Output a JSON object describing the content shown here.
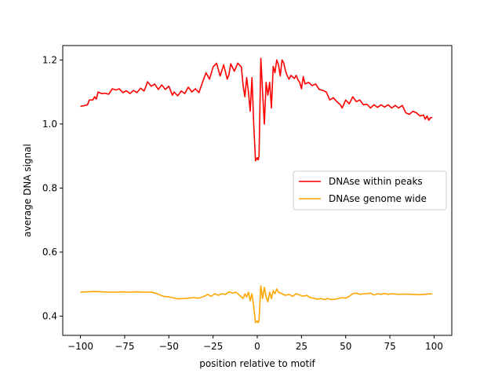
{
  "chart_data": {
    "type": "line",
    "title": "",
    "xlabel": "position relative to motif",
    "ylabel": "average DNA signal",
    "xlim": [
      -110,
      110
    ],
    "ylim": [
      0.34,
      1.245
    ],
    "xticks": [
      -100,
      -75,
      -50,
      -25,
      0,
      25,
      50,
      75,
      100
    ],
    "xtick_labels": [
      "−100",
      "−75",
      "−50",
      "−25",
      "0",
      "25",
      "50",
      "75",
      "100"
    ],
    "yticks": [
      0.4,
      0.6,
      0.8,
      1.0,
      1.2
    ],
    "ytick_labels": [
      "0.4",
      "0.6",
      "0.8",
      "1.0",
      "1.2"
    ],
    "grid": false,
    "legend_position": "center-right",
    "series": [
      {
        "name": "DNAse within peaks",
        "color": "#ff0000",
        "points": [
          [
            -100,
            1.055
          ],
          [
            -98,
            1.057
          ],
          [
            -96,
            1.06
          ],
          [
            -95,
            1.075
          ],
          [
            -93,
            1.075
          ],
          [
            -92,
            1.085
          ],
          [
            -91,
            1.078
          ],
          [
            -90,
            1.1
          ],
          [
            -88,
            1.095
          ],
          [
            -86,
            1.096
          ],
          [
            -84,
            1.093
          ],
          [
            -82,
            1.11
          ],
          [
            -80,
            1.106
          ],
          [
            -78,
            1.11
          ],
          [
            -76,
            1.098
          ],
          [
            -74,
            1.104
          ],
          [
            -72,
            1.095
          ],
          [
            -70,
            1.105
          ],
          [
            -68,
            1.098
          ],
          [
            -66,
            1.112
          ],
          [
            -64,
            1.103
          ],
          [
            -62,
            1.132
          ],
          [
            -60,
            1.118
          ],
          [
            -58,
            1.125
          ],
          [
            -56,
            1.108
          ],
          [
            -54,
            1.122
          ],
          [
            -52,
            1.108
          ],
          [
            -50,
            1.118
          ],
          [
            -48,
            1.09
          ],
          [
            -47,
            1.1
          ],
          [
            -45,
            1.088
          ],
          [
            -43,
            1.103
          ],
          [
            -41,
            1.095
          ],
          [
            -39,
            1.115
          ],
          [
            -37,
            1.1
          ],
          [
            -35,
            1.11
          ],
          [
            -33,
            1.098
          ],
          [
            -31,
            1.13
          ],
          [
            -29,
            1.16
          ],
          [
            -27,
            1.14
          ],
          [
            -25,
            1.178
          ],
          [
            -23,
            1.19
          ],
          [
            -21,
            1.15
          ],
          [
            -19,
            1.185
          ],
          [
            -17,
            1.14
          ],
          [
            -16,
            1.155
          ],
          [
            -15,
            1.188
          ],
          [
            -13,
            1.165
          ],
          [
            -11,
            1.19
          ],
          [
            -9,
            1.178
          ],
          [
            -8,
            1.12
          ],
          [
            -7,
            1.085
          ],
          [
            -6,
            1.145
          ],
          [
            -5,
            1.1
          ],
          [
            -4,
            1.04
          ],
          [
            -3,
            1.145
          ],
          [
            -2,
            1.0
          ],
          [
            -1,
            0.885
          ],
          [
            0,
            0.895
          ],
          [
            0.5,
            0.888
          ],
          [
            1,
            0.9
          ],
          [
            2,
            1.205
          ],
          [
            3,
            1.1
          ],
          [
            4,
            1.0
          ],
          [
            5,
            1.13
          ],
          [
            6,
            1.09
          ],
          [
            7,
            1.13
          ],
          [
            8,
            1.05
          ],
          [
            9,
            1.18
          ],
          [
            10,
            1.16
          ],
          [
            11,
            1.2
          ],
          [
            12,
            1.185
          ],
          [
            13,
            1.15
          ],
          [
            14,
            1.2
          ],
          [
            15,
            1.19
          ],
          [
            16,
            1.165
          ],
          [
            17,
            1.15
          ],
          [
            18,
            1.14
          ],
          [
            19,
            1.152
          ],
          [
            21,
            1.142
          ],
          [
            22,
            1.152
          ],
          [
            23,
            1.138
          ],
          [
            24,
            1.13
          ],
          [
            25,
            1.11
          ],
          [
            26,
            1.148
          ],
          [
            27,
            1.125
          ],
          [
            29,
            1.13
          ],
          [
            31,
            1.12
          ],
          [
            33,
            1.125
          ],
          [
            35,
            1.108
          ],
          [
            37,
            1.105
          ],
          [
            39,
            1.1
          ],
          [
            41,
            1.075
          ],
          [
            43,
            1.082
          ],
          [
            45,
            1.07
          ],
          [
            47,
            1.06
          ],
          [
            48,
            1.05
          ],
          [
            50,
            1.075
          ],
          [
            52,
            1.063
          ],
          [
            54,
            1.085
          ],
          [
            56,
            1.07
          ],
          [
            58,
            1.075
          ],
          [
            60,
            1.06
          ],
          [
            62,
            1.062
          ],
          [
            64,
            1.05
          ],
          [
            66,
            1.06
          ],
          [
            68,
            1.052
          ],
          [
            70,
            1.06
          ],
          [
            72,
            1.053
          ],
          [
            74,
            1.06
          ],
          [
            76,
            1.05
          ],
          [
            78,
            1.058
          ],
          [
            80,
            1.05
          ],
          [
            82,
            1.058
          ],
          [
            84,
            1.035
          ],
          [
            86,
            1.03
          ],
          [
            88,
            1.04
          ],
          [
            90,
            1.035
          ],
          [
            92,
            1.025
          ],
          [
            94,
            1.028
          ],
          [
            95,
            1.015
          ],
          [
            96,
            1.025
          ],
          [
            97,
            1.012
          ],
          [
            98,
            1.02
          ],
          [
            99,
            1.02
          ]
        ]
      },
      {
        "name": "DNAse genome wide",
        "color": "#ffa500",
        "points": [
          [
            -100,
            0.475
          ],
          [
            -96,
            0.476
          ],
          [
            -92,
            0.477
          ],
          [
            -88,
            0.476
          ],
          [
            -84,
            0.475
          ],
          [
            -80,
            0.475
          ],
          [
            -76,
            0.476
          ],
          [
            -72,
            0.475
          ],
          [
            -68,
            0.476
          ],
          [
            -64,
            0.475
          ],
          [
            -60,
            0.475
          ],
          [
            -57,
            0.471
          ],
          [
            -55,
            0.466
          ],
          [
            -53,
            0.462
          ],
          [
            -50,
            0.46
          ],
          [
            -48,
            0.458
          ],
          [
            -45,
            0.454
          ],
          [
            -42,
            0.455
          ],
          [
            -39,
            0.456
          ],
          [
            -36,
            0.458
          ],
          [
            -33,
            0.456
          ],
          [
            -30,
            0.462
          ],
          [
            -28,
            0.468
          ],
          [
            -26,
            0.462
          ],
          [
            -24,
            0.47
          ],
          [
            -22,
            0.465
          ],
          [
            -20,
            0.47
          ],
          [
            -18,
            0.468
          ],
          [
            -16,
            0.476
          ],
          [
            -14,
            0.472
          ],
          [
            -12,
            0.475
          ],
          [
            -10,
            0.465
          ],
          [
            -8,
            0.455
          ],
          [
            -7,
            0.47
          ],
          [
            -6,
            0.46
          ],
          [
            -5,
            0.475
          ],
          [
            -4,
            0.448
          ],
          [
            -3,
            0.47
          ],
          [
            -2,
            0.43
          ],
          [
            -1,
            0.38
          ],
          [
            0,
            0.385
          ],
          [
            0.5,
            0.38
          ],
          [
            1,
            0.386
          ],
          [
            2,
            0.495
          ],
          [
            3,
            0.455
          ],
          [
            4,
            0.49
          ],
          [
            5,
            0.46
          ],
          [
            6,
            0.445
          ],
          [
            7,
            0.475
          ],
          [
            8,
            0.455
          ],
          [
            9,
            0.48
          ],
          [
            10,
            0.47
          ],
          [
            11,
            0.485
          ],
          [
            12,
            0.475
          ],
          [
            14,
            0.47
          ],
          [
            16,
            0.465
          ],
          [
            18,
            0.468
          ],
          [
            20,
            0.462
          ],
          [
            22,
            0.47
          ],
          [
            24,
            0.466
          ],
          [
            26,
            0.462
          ],
          [
            28,
            0.465
          ],
          [
            30,
            0.458
          ],
          [
            32,
            0.456
          ],
          [
            34,
            0.453
          ],
          [
            36,
            0.455
          ],
          [
            38,
            0.452
          ],
          [
            40,
            0.455
          ],
          [
            42,
            0.452
          ],
          [
            44,
            0.453
          ],
          [
            46,
            0.455
          ],
          [
            48,
            0.458
          ],
          [
            50,
            0.456
          ],
          [
            52,
            0.462
          ],
          [
            54,
            0.47
          ],
          [
            56,
            0.472
          ],
          [
            58,
            0.468
          ],
          [
            60,
            0.47
          ],
          [
            62,
            0.47
          ],
          [
            64,
            0.472
          ],
          [
            66,
            0.466
          ],
          [
            68,
            0.47
          ],
          [
            70,
            0.468
          ],
          [
            72,
            0.471
          ],
          [
            74,
            0.468
          ],
          [
            76,
            0.47
          ],
          [
            80,
            0.468
          ],
          [
            84,
            0.469
          ],
          [
            88,
            0.468
          ],
          [
            92,
            0.467
          ],
          [
            96,
            0.469
          ],
          [
            99,
            0.47
          ]
        ]
      }
    ]
  }
}
